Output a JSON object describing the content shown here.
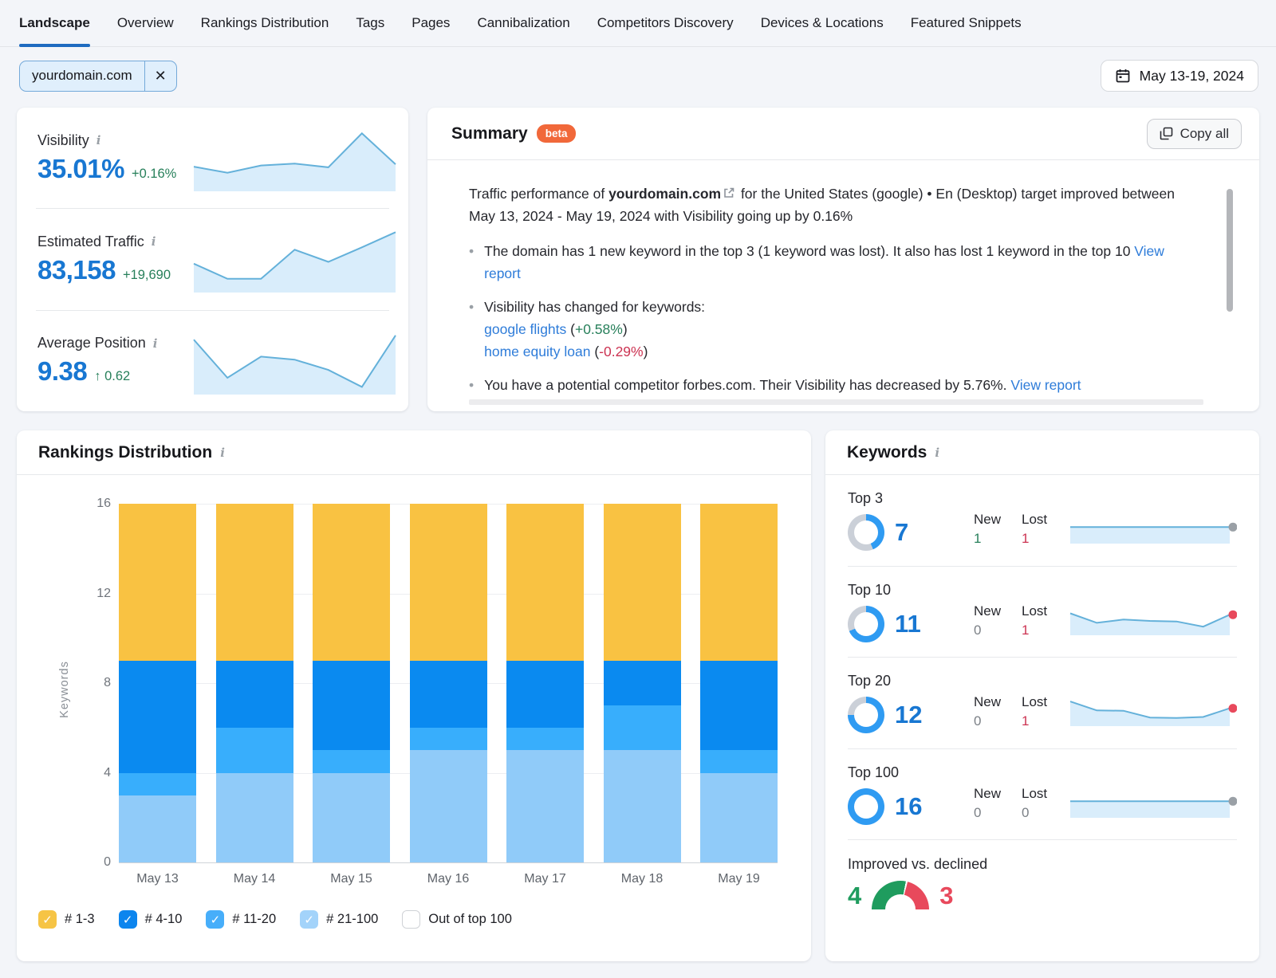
{
  "nav": {
    "tabs": [
      {
        "label": "Landscape",
        "active": true
      },
      {
        "label": "Overview",
        "active": false
      },
      {
        "label": "Rankings Distribution",
        "active": false
      },
      {
        "label": "Tags",
        "active": false
      },
      {
        "label": "Pages",
        "active": false
      },
      {
        "label": "Cannibalization",
        "active": false
      },
      {
        "label": "Competitors Discovery",
        "active": false
      },
      {
        "label": "Devices & Locations",
        "active": false
      },
      {
        "label": "Featured Snippets",
        "active": false
      }
    ]
  },
  "icons": {
    "close": "✕",
    "check": "✓",
    "info": "i"
  },
  "filters": {
    "domain_chip": "yourdomain.com",
    "date_range": "May 13-19, 2024"
  },
  "metrics": [
    {
      "label": "Visibility",
      "value": "35.01%",
      "delta": "+0.16%",
      "spark_id": "visibility-spark"
    },
    {
      "label": "Estimated Traffic",
      "value": "83,158",
      "delta": "+19,690",
      "spark_id": "traffic-spark"
    },
    {
      "label": "Average Position",
      "value": "9.38",
      "delta": "↑ 0.62",
      "spark_id": "position-spark"
    }
  ],
  "summary": {
    "title": "Summary",
    "beta": "beta",
    "copy_all": "Copy all",
    "intro_1": "Traffic performance of ",
    "domain": "yourdomain.com",
    "intro_2": " for the United States (google) • En (Desktop) target improved between May 13, 2024 - May 19, 2024 with Visibility going up by 0.16%",
    "b1_text": "The domain has 1 new keyword in the top 3 (1 keyword was lost). It also has lost 1 keyword in the top 10 ",
    "b1_link": "View report",
    "b2_text": "Visibility has changed for keywords:",
    "kw1_link": "google flights",
    "kw1_delta": "+0.58%",
    "kw2_link": "home equity loan",
    "kw2_delta": "-0.29%",
    "paren_open": "(",
    "paren_close": ")",
    "b3_text": "You have a potential competitor forbes.com. Their Visibility has decreased by 5.76%. ",
    "b3_link": "View report"
  },
  "rankings": {
    "title": "Rankings Distribution",
    "legend": [
      {
        "label": "# 1-3",
        "color": "#F6C445",
        "checked": true
      },
      {
        "label": "# 4-10",
        "color": "#0C85EE",
        "checked": true
      },
      {
        "label": "# 11-20",
        "color": "#47AEFA",
        "checked": true
      },
      {
        "label": "# 21-100",
        "color": "#A3D3FA",
        "checked": true
      },
      {
        "label": "Out of top 100",
        "color": "#FFFFFF",
        "checked": false
      }
    ]
  },
  "keywords": {
    "title": "Keywords",
    "rows": [
      {
        "label": "Top 3",
        "value": 7,
        "pct": 43.75,
        "new_label": "New",
        "lost_label": "Lost",
        "new": 1,
        "lost": 1,
        "spark_id": "top3-spark",
        "dot_color": "#9aa0a6"
      },
      {
        "label": "Top 10",
        "value": 11,
        "pct": 68.75,
        "new_label": "New",
        "lost_label": "Lost",
        "new": 0,
        "lost": 1,
        "spark_id": "top10-spark",
        "dot_color": "#e8495c"
      },
      {
        "label": "Top 20",
        "value": 12,
        "pct": 75,
        "new_label": "New",
        "lost_label": "Lost",
        "new": 0,
        "lost": 1,
        "spark_id": "top20-spark",
        "dot_color": "#e8495c"
      },
      {
        "label": "Top 100",
        "value": 16,
        "pct": 100,
        "new_label": "New",
        "lost_label": "Lost",
        "new": 0,
        "lost": 0,
        "spark_id": "top100-spark",
        "dot_color": "#9aa0a6"
      }
    ],
    "improved_declined": {
      "label": "Improved vs. declined",
      "improved": 4,
      "declined": 3
    }
  },
  "chart_data": [
    {
      "id": "rankings-distribution",
      "type": "bar",
      "stacked": true,
      "title": "Rankings Distribution",
      "categories": [
        "May 13",
        "May 14",
        "May 15",
        "May 16",
        "May 17",
        "May 18",
        "May 19"
      ],
      "series": [
        {
          "name": "# 21-100",
          "color": "#90CBF9",
          "values": [
            3,
            4,
            4,
            5,
            5,
            5,
            4
          ]
        },
        {
          "name": "# 11-20",
          "color": "#38AEFC",
          "values": [
            1,
            2,
            1,
            1,
            1,
            2,
            1
          ]
        },
        {
          "name": "# 4-10",
          "color": "#0A8AF0",
          "values": [
            5,
            3,
            4,
            3,
            3,
            2,
            4
          ]
        },
        {
          "name": "# 1-3",
          "color": "#F9C242",
          "values": [
            7,
            7,
            7,
            7,
            7,
            7,
            7
          ]
        }
      ],
      "xlabel": "",
      "ylabel": "Keywords",
      "ylim": [
        0,
        16
      ],
      "yticks": [
        0,
        4,
        8,
        12,
        16
      ],
      "grid": true,
      "legend_position": "bottom"
    },
    {
      "id": "visibility-spark",
      "type": "area",
      "x": [
        "May 13",
        "May 14",
        "May 15",
        "May 16",
        "May 17",
        "May 18",
        "May 19"
      ],
      "values": [
        38,
        28,
        40,
        43,
        37,
        93,
        42
      ],
      "units": "relative-height-%"
    },
    {
      "id": "traffic-spark",
      "type": "area",
      "x": [
        "May 13",
        "May 14",
        "May 15",
        "May 16",
        "May 17",
        "May 18",
        "May 19"
      ],
      "values": [
        45,
        20,
        20,
        68,
        48,
        72,
        97
      ],
      "units": "relative-height-%"
    },
    {
      "id": "position-spark",
      "type": "area",
      "x": [
        "May 13",
        "May 14",
        "May 15",
        "May 16",
        "May 17",
        "May 18",
        "May 19"
      ],
      "values": [
        88,
        25,
        60,
        55,
        38,
        10,
        95
      ],
      "units": "relative-height-%"
    },
    {
      "id": "top3-spark",
      "type": "area",
      "values": [
        55,
        55,
        55,
        55,
        55,
        55,
        55
      ],
      "units": "relative-height-%"
    },
    {
      "id": "top10-spark",
      "type": "area",
      "values": [
        75,
        40,
        52,
        47,
        45,
        26,
        70
      ],
      "units": "relative-height-%"
    },
    {
      "id": "top20-spark",
      "type": "area",
      "values": [
        85,
        52,
        51,
        26,
        24,
        28,
        60
      ],
      "units": "relative-height-%"
    },
    {
      "id": "top100-spark",
      "type": "area",
      "values": [
        55,
        55,
        55,
        55,
        55,
        55,
        55
      ],
      "units": "relative-height-%"
    }
  ]
}
